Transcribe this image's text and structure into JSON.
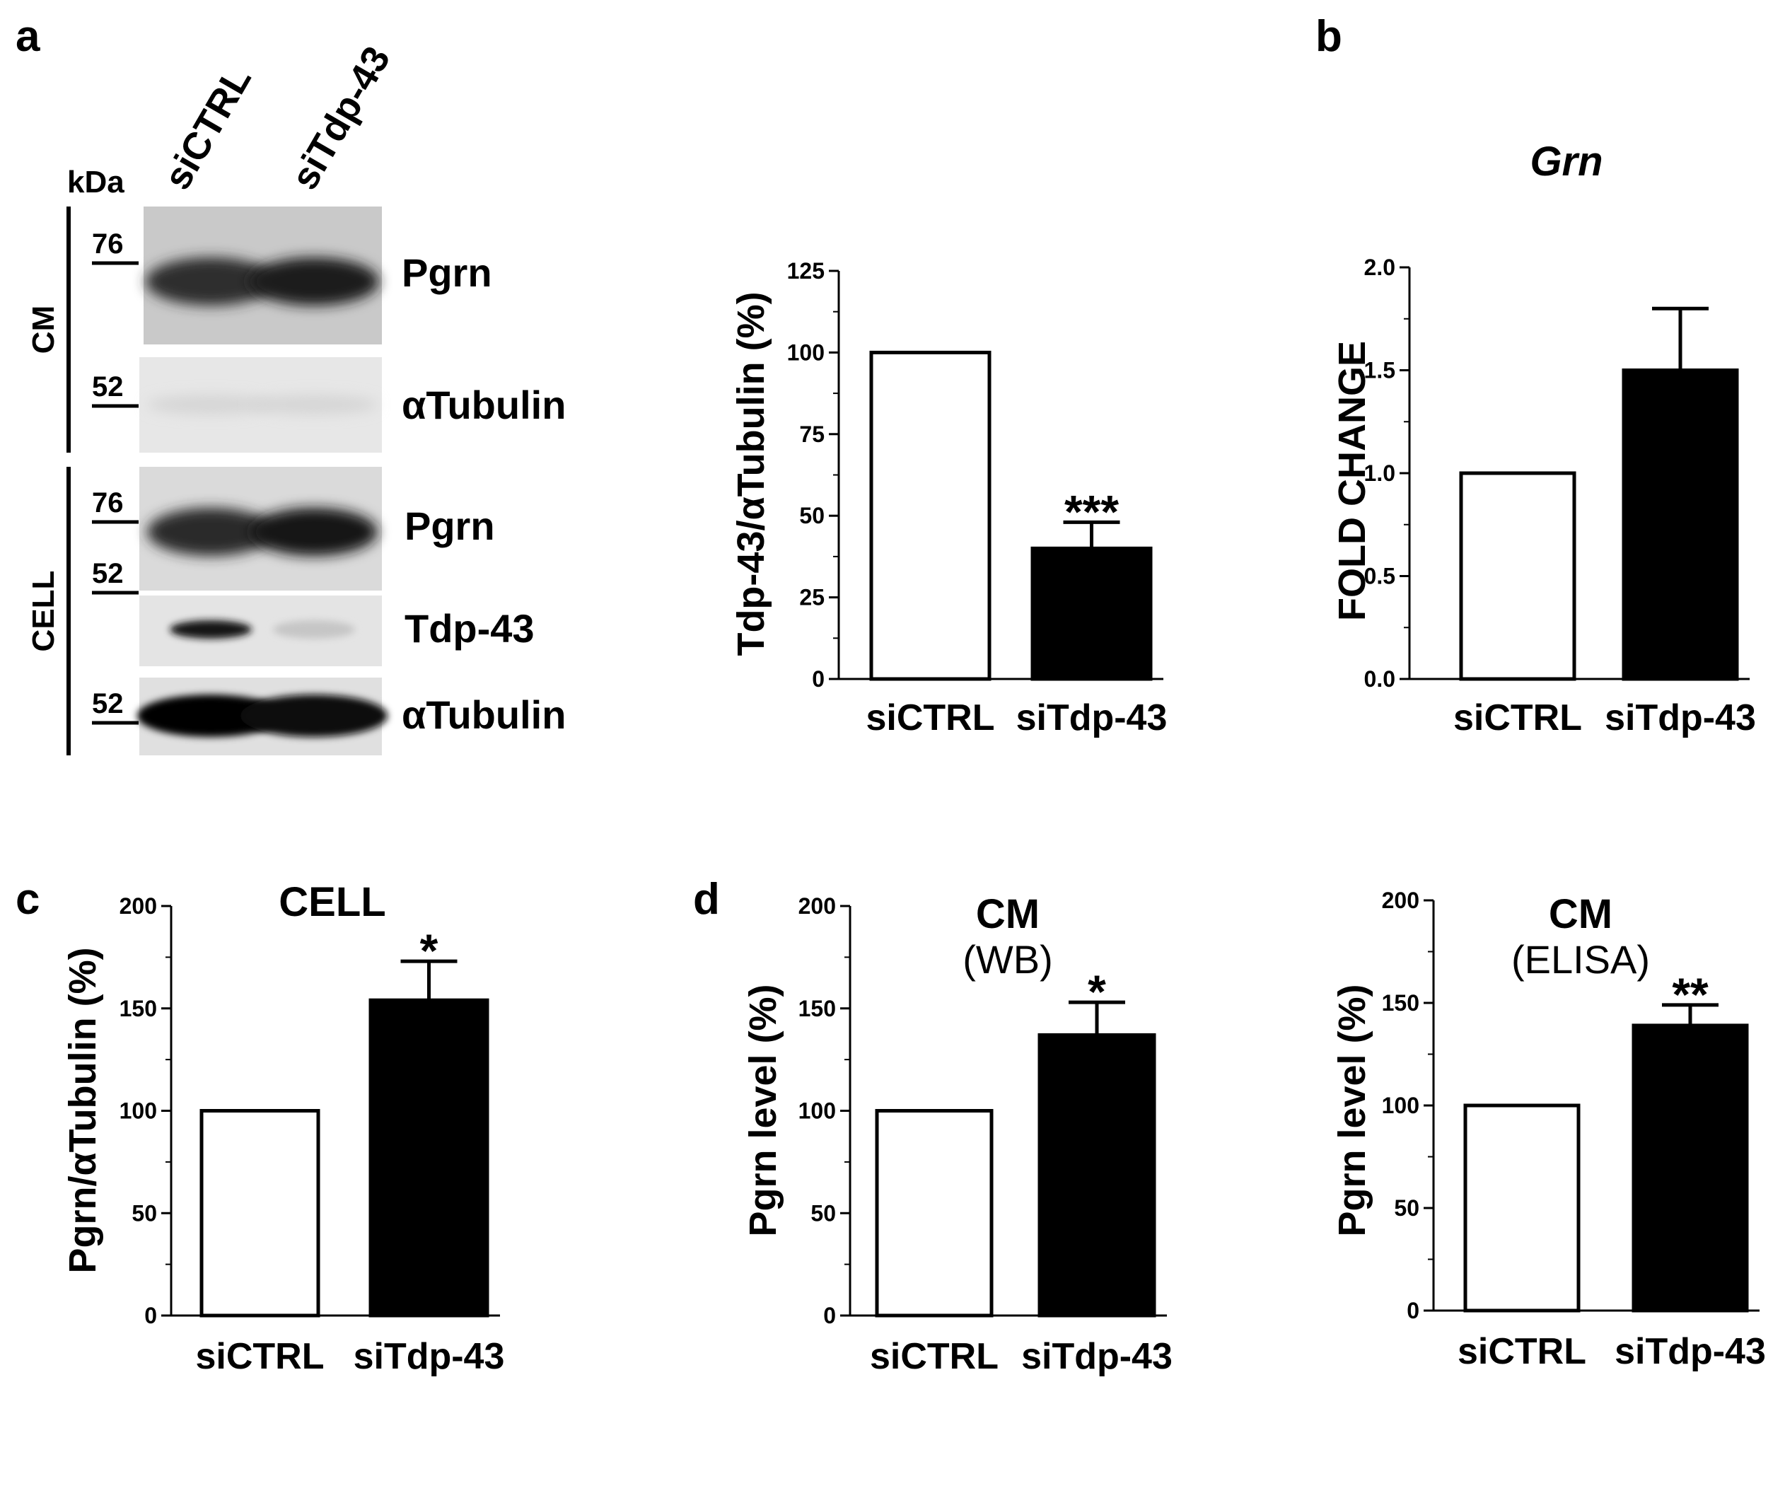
{
  "panel_letters": {
    "a": "a",
    "b": "b",
    "c": "c",
    "d": "d"
  },
  "blot": {
    "kda_label": "kDa",
    "lanes": [
      "siCTRL",
      "siTdp-43"
    ],
    "groups": {
      "cm": "CM",
      "cell": "CELL"
    },
    "markers": {
      "m76_top": "76",
      "m52_cm": "52",
      "m76_cell": "76",
      "m52_cell": "52",
      "m52_tdp": "52"
    },
    "rows": [
      {
        "label": "Pgrn",
        "band_intensity": [
          0.8,
          0.88
        ]
      },
      {
        "label": "αTubulin",
        "band_intensity": [
          0.05,
          0.05
        ]
      },
      {
        "label": "Pgrn",
        "band_intensity": [
          0.82,
          0.92
        ]
      },
      {
        "label": "Tdp-43",
        "band_intensity": [
          0.9,
          0.12
        ]
      },
      {
        "label": "αTubulin",
        "band_intensity": [
          1.0,
          0.95
        ]
      }
    ]
  },
  "chart_data": [
    {
      "id": "a_quant",
      "type": "bar",
      "title": "",
      "subtitle": "",
      "ylabel": "Tdp-43/αTubulin (%)",
      "ylim": [
        0,
        125
      ],
      "yticks": [
        "0",
        "25",
        "50",
        "75",
        "100",
        "125"
      ],
      "categories": [
        "siCTRL",
        "siTdp-43"
      ],
      "values": [
        100,
        40
      ],
      "errors": [
        0,
        8
      ],
      "annotations": [
        "",
        "***"
      ],
      "colors": [
        "#ffffff",
        "#000000"
      ]
    },
    {
      "id": "b_grn",
      "type": "bar",
      "title": "Grn",
      "subtitle": "",
      "ylabel": "FOLD CHANGE",
      "ylim": [
        0,
        2.0
      ],
      "yticks": [
        "0.0",
        "0.5",
        "1.0",
        "1.5",
        "2.0"
      ],
      "categories": [
        "siCTRL",
        "siTdp-43"
      ],
      "values": [
        1.0,
        1.5
      ],
      "errors": [
        0,
        0.3
      ],
      "annotations": [
        "",
        ""
      ],
      "colors": [
        "#ffffff",
        "#000000"
      ]
    },
    {
      "id": "c_cell",
      "type": "bar",
      "title": "CELL",
      "subtitle": "",
      "ylabel": "Pgrn/αTubulin (%)",
      "ylim": [
        0,
        200
      ],
      "yticks": [
        "0",
        "50",
        "100",
        "150",
        "200"
      ],
      "categories": [
        "siCTRL",
        "siTdp-43"
      ],
      "values": [
        100,
        154
      ],
      "errors": [
        0,
        19
      ],
      "annotations": [
        "",
        "*"
      ],
      "colors": [
        "#ffffff",
        "#000000"
      ]
    },
    {
      "id": "d_wb",
      "type": "bar",
      "title": "CM",
      "subtitle": "(WB)",
      "ylabel": "Pgrn level (%)",
      "ylim": [
        0,
        200
      ],
      "yticks": [
        "0",
        "50",
        "100",
        "150",
        "200"
      ],
      "categories": [
        "siCTRL",
        "siTdp-43"
      ],
      "values": [
        100,
        137
      ],
      "errors": [
        0,
        16
      ],
      "annotations": [
        "",
        "*"
      ],
      "colors": [
        "#ffffff",
        "#000000"
      ]
    },
    {
      "id": "d_elisa",
      "type": "bar",
      "title": "CM",
      "subtitle": "(ELISA)",
      "ylabel": "Pgrn level (%)",
      "ylim": [
        0,
        200
      ],
      "yticks": [
        "0",
        "50",
        "100",
        "150",
        "200"
      ],
      "categories": [
        "siCTRL",
        "siTdp-43"
      ],
      "values": [
        100,
        139
      ],
      "errors": [
        0,
        10
      ],
      "annotations": [
        "",
        "**"
      ],
      "colors": [
        "#ffffff",
        "#000000"
      ]
    }
  ]
}
